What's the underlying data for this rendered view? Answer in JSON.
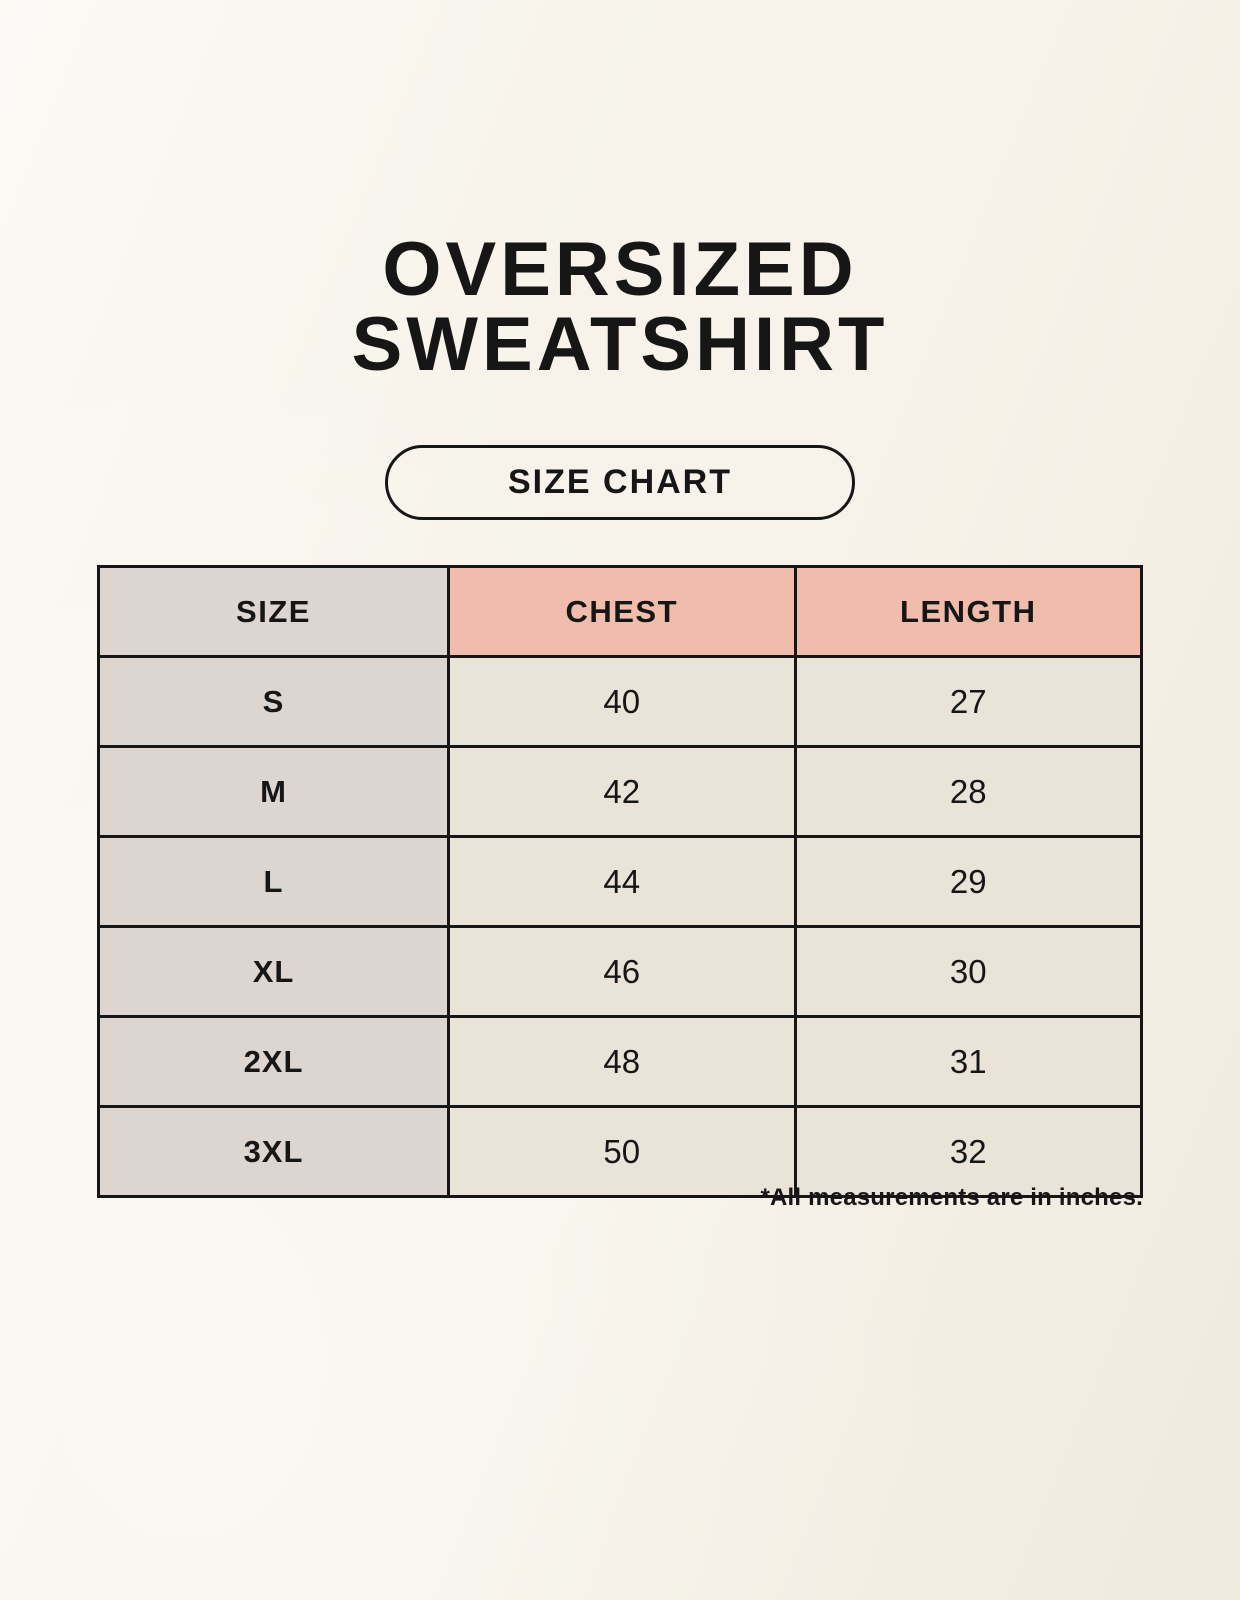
{
  "header": {
    "title_line1": "OVERSIZED",
    "title_line2": "SWEATSHIRT",
    "badge_label": "SIZE CHART"
  },
  "footnote": "*All measurements are in inches.",
  "colors": {
    "background": "#f7f3ea",
    "header_accent_pink": "#f0bcac",
    "size_column_gray": "#ddd6d0",
    "value_cell_cream": "#eae3d7",
    "border_and_text": "#161616"
  },
  "chart_data": {
    "type": "table",
    "title": "OVERSIZED SWEATSHIRT",
    "subtitle": "SIZE CHART",
    "columns": [
      "SIZE",
      "CHEST",
      "LENGTH"
    ],
    "units": "inches",
    "rows": [
      [
        "S",
        "40",
        "27"
      ],
      [
        "M",
        "42",
        "28"
      ],
      [
        "L",
        "44",
        "29"
      ],
      [
        "XL",
        "46",
        "30"
      ],
      [
        "2XL",
        "48",
        "31"
      ],
      [
        "3XL",
        "50",
        "32"
      ]
    ]
  }
}
